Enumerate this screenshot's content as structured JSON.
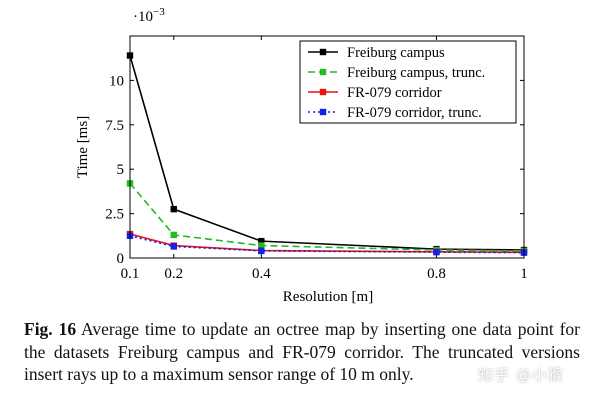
{
  "chart_data": {
    "type": "line",
    "title": "",
    "xlabel": "Resolution [m]",
    "ylabel": "Time [ms]",
    "y_multiplier_label": "·10",
    "y_multiplier_exponent": "−3",
    "xlim": [
      0.1,
      1.0
    ],
    "ylim": [
      0,
      12.5
    ],
    "x": [
      0.1,
      0.2,
      0.4,
      0.8,
      1.0
    ],
    "x_tick_labels": [
      "0.1",
      "0.2",
      "0.4",
      "0.8",
      "1"
    ],
    "y_ticks": [
      0,
      2.5,
      5,
      7.5,
      10
    ],
    "y_tick_labels": [
      "0",
      "2.5",
      "5",
      "7.5",
      "10"
    ],
    "grid": false,
    "legend_position": "top-right",
    "series": [
      {
        "name": "Freiburg campus",
        "values": [
          11.4,
          2.75,
          0.95,
          0.5,
          0.45
        ],
        "color": "#000000",
        "dash": "solid"
      },
      {
        "name": "Freiburg campus, trunc.",
        "values": [
          4.2,
          1.3,
          0.7,
          0.45,
          0.4
        ],
        "color": "#22bb22",
        "dash": "dashed"
      },
      {
        "name": "FR-079 corridor",
        "values": [
          1.35,
          0.7,
          0.42,
          0.35,
          0.32
        ],
        "color": "#ee1111",
        "dash": "solid"
      },
      {
        "name": "FR-079 corridor, trunc.",
        "values": [
          1.25,
          0.65,
          0.4,
          0.33,
          0.3
        ],
        "color": "#1122ee",
        "dash": "dotted"
      }
    ]
  },
  "caption": {
    "label": "Fig. 16",
    "text": "Average time to update an octree map by inserting one data point for the datasets Freiburg campus and FR-079 corridor. The truncated versions insert rays up to a maximum sensor range of 10 m only."
  },
  "watermark": "知乎 @小猴"
}
